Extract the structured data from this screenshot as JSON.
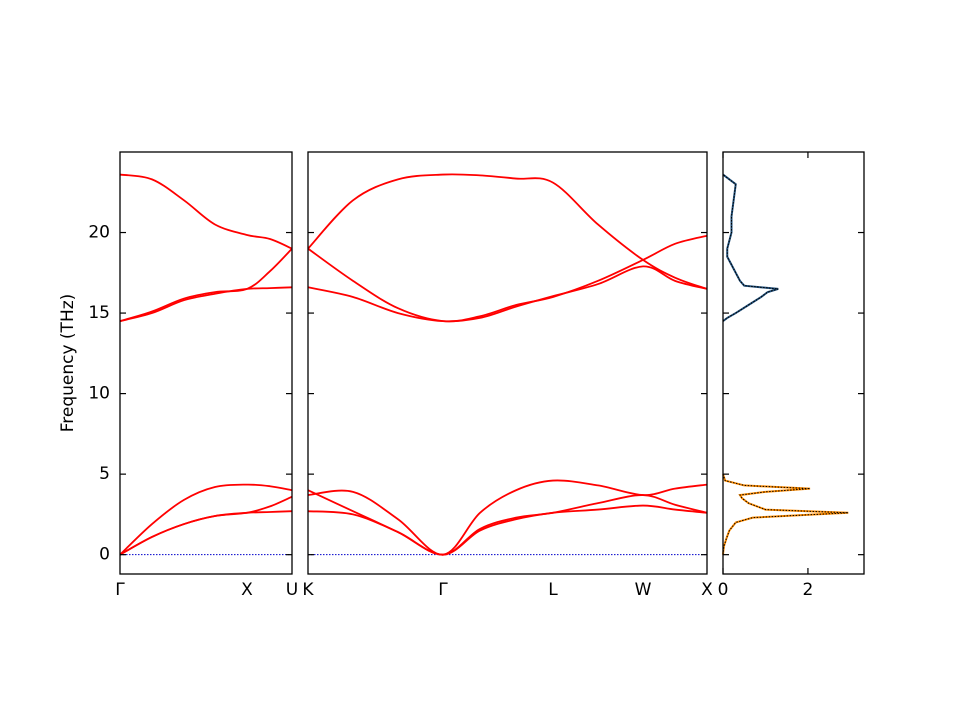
{
  "chart_data": [
    {
      "type": "bands",
      "ylabel": "Frequency (THz)",
      "xlim": [
        0,
        1.72
      ],
      "xticks": [
        {
          "value": 0,
          "label": "Γ"
        },
        {
          "value": 1.27,
          "label": "X"
        },
        {
          "value": 1.72,
          "label": "U"
        }
      ],
      "ylim": [
        -1.2,
        25
      ],
      "yticks": [
        0,
        5,
        10,
        15,
        20
      ],
      "x": [
        0,
        0.32,
        0.64,
        0.95,
        1.27,
        1.5,
        1.72
      ],
      "hline": 0,
      "hline_color": "#0000cc",
      "series": [
        {
          "color": "#ff0000",
          "values": [
            0,
            1.1,
            1.9,
            2.4,
            2.6,
            2.65,
            2.7
          ]
        },
        {
          "color": "#ff0000",
          "values": [
            0,
            1.1,
            1.9,
            2.4,
            2.6,
            3.0,
            3.6
          ]
        },
        {
          "color": "#ff0000",
          "values": [
            0,
            1.9,
            3.4,
            4.2,
            4.35,
            4.25,
            4.0
          ]
        },
        {
          "color": "#ff0000",
          "values": [
            14.5,
            15.0,
            15.8,
            16.2,
            16.5,
            16.55,
            16.6
          ]
        },
        {
          "color": "#ff0000",
          "values": [
            14.5,
            15.1,
            15.9,
            16.3,
            16.5,
            17.6,
            19.0
          ]
        },
        {
          "color": "#ff0000",
          "values": [
            23.6,
            23.3,
            22.0,
            20.5,
            19.85,
            19.6,
            19.0
          ]
        }
      ]
    },
    {
      "type": "bands",
      "xlim": [
        0,
        3.99
      ],
      "xticks": [
        {
          "value": 0,
          "label": "K"
        },
        {
          "value": 1.35,
          "label": "Γ"
        },
        {
          "value": 2.45,
          "label": "L"
        },
        {
          "value": 3.35,
          "label": "W"
        },
        {
          "value": 3.99,
          "label": "X"
        }
      ],
      "x": [
        0,
        0.45,
        0.9,
        1.35,
        1.72,
        2.08,
        2.45,
        2.9,
        3.35,
        3.67,
        3.99
      ],
      "hline": 0,
      "hline_color": "#0000cc",
      "series": [
        {
          "color": "#ff0000",
          "values": [
            2.7,
            2.5,
            1.4,
            0,
            1.5,
            2.2,
            2.6,
            2.8,
            3.05,
            2.8,
            2.6
          ]
        },
        {
          "color": "#ff0000",
          "values": [
            4.0,
            2.7,
            1.4,
            0,
            1.6,
            2.3,
            2.6,
            3.2,
            3.7,
            3.1,
            2.6
          ]
        },
        {
          "color": "#ff0000",
          "values": [
            3.7,
            3.9,
            2.2,
            0,
            2.6,
            4.0,
            4.6,
            4.3,
            3.7,
            4.1,
            4.35
          ]
        },
        {
          "color": "#ff0000",
          "values": [
            16.6,
            16.0,
            15.0,
            14.5,
            14.7,
            15.4,
            16.05,
            16.8,
            17.9,
            17.0,
            16.5
          ]
        },
        {
          "color": "#ff0000",
          "values": [
            19.0,
            17.0,
            15.3,
            14.5,
            14.8,
            15.5,
            16.0,
            17.0,
            18.3,
            19.3,
            19.8
          ]
        },
        {
          "color": "#ff0000",
          "values": [
            19.0,
            22.0,
            23.3,
            23.6,
            23.55,
            23.35,
            23.1,
            20.5,
            18.3,
            17.2,
            16.5
          ]
        }
      ]
    },
    {
      "type": "dos",
      "xlim": [
        0,
        3.32
      ],
      "xticks": [
        0,
        2
      ],
      "series": [
        {
          "color": "#ff8c00",
          "edge_color": "#000000",
          "y": [
            0,
            0.5,
            1,
            1.5,
            2,
            2.3,
            2.6,
            2.8,
            3.2,
            3.5,
            3.7,
            3.9,
            4.1,
            4.3,
            4.6,
            5
          ],
          "values": [
            0,
            0.02,
            0.08,
            0.15,
            0.3,
            0.7,
            2.95,
            1.0,
            0.6,
            0.45,
            0.4,
            1.0,
            2.05,
            0.5,
            0.05,
            0
          ]
        },
        {
          "color": "#1f4e79",
          "edge_color": "#000000",
          "y": [
            14.5,
            14.7,
            15,
            15.5,
            16,
            16.3,
            16.5,
            16.7,
            17,
            17.5,
            18,
            18.5,
            19,
            19.5,
            20,
            21,
            22,
            23,
            23.6
          ],
          "values": [
            0,
            0.1,
            0.3,
            0.6,
            0.9,
            1.05,
            1.3,
            0.5,
            0.4,
            0.3,
            0.2,
            0.1,
            0.1,
            0.15,
            0.2,
            0.2,
            0.25,
            0.3,
            0
          ]
        }
      ]
    }
  ]
}
